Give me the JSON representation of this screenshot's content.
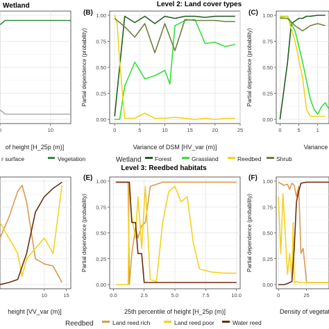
{
  "headings": {
    "top_left": "Wetland",
    "level2": "Level 2: Land cover types",
    "level3": "Level 3: Reedbed habitats"
  },
  "colors": {
    "veg_grey": "#a9a9a9",
    "veg_green": "#2e8b3e",
    "forest": "#1b5e20",
    "grassland": "#32e03a",
    "reedbed_yellow": "#f2d414",
    "shrub": "#6b7f3a",
    "land_reed_rich": "#d99a4e",
    "land_reed_poor": "#f3d21c",
    "water_reed": "#6b2b0e"
  },
  "chart_data": [
    {
      "id": "partial-left-top",
      "type": "line",
      "xlabel": "of height [H_25p (m)]",
      "xticks": [
        "0",
        "10"
      ],
      "xlim": [
        0,
        14
      ],
      "ylim": [
        0,
        1
      ],
      "legend": [
        "r surface",
        "Vegetation"
      ],
      "series": [
        {
          "color": "#a9a9a9",
          "x": [
            0,
            0.3,
            1,
            3,
            6,
            10,
            14
          ],
          "y": [
            0.09,
            0.08,
            0.05,
            0.05,
            0.05,
            0.05,
            0.05
          ]
        },
        {
          "color": "#2e8b3e",
          "x": [
            0,
            0.3,
            1,
            3,
            6,
            10,
            14
          ],
          "y": [
            0.91,
            0.92,
            0.95,
            0.95,
            0.95,
            0.95,
            0.95
          ]
        }
      ]
    },
    {
      "id": "B",
      "panel_label": "(B)",
      "type": "line",
      "xlabel": "Variance of DSM [HV_var (m)]",
      "ylabel": "Partial dependence (probability)",
      "xticks": [
        "0",
        "5",
        "10",
        "15",
        "20",
        "25"
      ],
      "yticks": [
        "0.00",
        "0.25",
        "0.50",
        "0.75",
        "1.00"
      ],
      "xlim": [
        -1,
        25
      ],
      "ylim": [
        0,
        1
      ],
      "legend_title": "Wetland",
      "legend": [
        "Forest",
        "Grassland",
        "Reedbed",
        "Shrub"
      ],
      "series": [
        {
          "name": "Forest",
          "color": "#1b5e20",
          "x": [
            0,
            2,
            4,
            6,
            8,
            10,
            12,
            14,
            16,
            18,
            20,
            22,
            24
          ],
          "y": [
            0.03,
            0.99,
            0.93,
            0.99,
            0.92,
            0.99,
            0.97,
            0.99,
            0.99,
            0.98,
            0.99,
            0.99,
            0.99
          ]
        },
        {
          "name": "Grassland",
          "color": "#32e03a",
          "x": [
            0,
            1,
            2,
            4,
            6,
            8,
            10,
            11,
            12,
            14,
            16,
            18,
            20,
            22,
            24
          ],
          "y": [
            0.0,
            0.0,
            0.32,
            0.55,
            0.39,
            0.42,
            0.47,
            0.34,
            0.9,
            0.95,
            0.96,
            0.73,
            0.74,
            0.7,
            0.72
          ]
        },
        {
          "name": "Reedbed",
          "color": "#f2d414",
          "x": [
            0,
            0.5,
            1,
            2,
            4,
            6,
            8,
            10,
            12,
            14,
            16,
            18,
            20,
            22,
            24
          ],
          "y": [
            1.0,
            0.92,
            0.55,
            0.01,
            0.01,
            0.06,
            0.01,
            0.01,
            0.02,
            0.01,
            0.0,
            0.01,
            0.0,
            0.01,
            0.01
          ]
        },
        {
          "name": "Shrub",
          "color": "#6b7f3a",
          "x": [
            0,
            2,
            4,
            6,
            8,
            10,
            12,
            14,
            16,
            18,
            20,
            22,
            24
          ],
          "y": [
            0.97,
            0.89,
            0.79,
            0.92,
            0.64,
            0.92,
            0.66,
            0.96,
            0.95,
            0.95,
            0.95,
            0.94,
            0.94
          ]
        }
      ]
    },
    {
      "id": "C",
      "panel_label": "(C)",
      "type": "line",
      "xlabel": "Variance of",
      "ylabel": "Partial dependence (probability)",
      "xticks": [
        "0",
        "5",
        "1"
      ],
      "yticks": [
        "0.00",
        "0.25",
        "0.50",
        "0.75",
        "1.00"
      ],
      "xlim": [
        -1,
        13
      ],
      "ylim": [
        0,
        1
      ],
      "series": [
        {
          "name": "Forest",
          "color": "#1b5e20",
          "x": [
            0,
            2,
            3,
            5,
            6,
            7,
            8,
            10,
            12
          ],
          "y": [
            0.0,
            0.55,
            0.92,
            0.97,
            0.97,
            0.99,
            0.99,
            1.0,
            1.0
          ]
        },
        {
          "name": "Grassland",
          "color": "#32e03a",
          "x": [
            0,
            2,
            4,
            6,
            8,
            9,
            10,
            11,
            12,
            13
          ],
          "y": [
            0.98,
            0.99,
            0.85,
            0.55,
            0.2,
            0.1,
            0.05,
            0.12,
            0.16,
            0.1
          ]
        },
        {
          "name": "Reedbed",
          "color": "#f2d414",
          "x": [
            0,
            2,
            4,
            6,
            7,
            8,
            9,
            10,
            12
          ],
          "y": [
            0.99,
            0.99,
            0.75,
            0.4,
            0.1,
            0.03,
            0.03,
            0.03,
            0.03
          ]
        },
        {
          "name": "Shrub",
          "color": "#6b7f3a",
          "x": [
            0,
            2,
            4,
            6,
            8,
            10,
            12
          ],
          "y": [
            0.97,
            0.97,
            0.9,
            0.85,
            0.9,
            0.92,
            0.9
          ]
        }
      ]
    },
    {
      "id": "partial-left-bottom",
      "type": "line",
      "xlabel": "height [VV_var (m)]",
      "xticks": [
        "10",
        "15"
      ],
      "xlim": [
        0,
        16
      ],
      "ylim": [
        0,
        1
      ],
      "series": [
        {
          "name": "Land reed rich",
          "color": "#d99a4e",
          "x": [
            0,
            2,
            4,
            5,
            6,
            8,
            10,
            12,
            14
          ],
          "y": [
            0.45,
            0.65,
            0.9,
            0.96,
            0.8,
            0.25,
            0.2,
            0.18,
            0.02
          ]
        },
        {
          "name": "Land reed poor",
          "color": "#f3d21c",
          "x": [
            0,
            2,
            4,
            5,
            6,
            8,
            10,
            12,
            14
          ],
          "y": [
            0.6,
            0.45,
            0.3,
            0.08,
            0.25,
            0.35,
            0.45,
            0.3,
            0.96
          ]
        },
        {
          "name": "Water reed",
          "color": "#6b2b0e",
          "x": [
            0,
            2,
            4,
            6,
            8,
            10,
            12,
            14
          ],
          "y": [
            0.0,
            0.02,
            0.05,
            0.3,
            0.7,
            0.85,
            0.93,
            0.99
          ]
        }
      ]
    },
    {
      "id": "E",
      "panel_label": "(E)",
      "type": "line",
      "xlabel": "25th percentile of height [H_25p (m)]",
      "ylabel": "Partial dependence (probability)",
      "xticks": [
        "0.0",
        "2.5",
        "5.0",
        "7.5",
        "10.0"
      ],
      "yticks": [
        "0.00",
        "0.25",
        "0.50",
        "0.75",
        "1.00"
      ],
      "xlim": [
        -0.3,
        10.3
      ],
      "ylim": [
        0,
        1
      ],
      "series": [
        {
          "name": "Land reed rich",
          "color": "#d99a4e",
          "x": [
            0.2,
            1.2,
            1.3,
            1.5,
            1.8,
            2.0,
            2.3,
            2.6,
            3.0,
            3.5,
            4.0,
            5.0,
            6.0,
            7.0,
            8.0,
            9.0,
            10.0
          ],
          "y": [
            0.99,
            0.99,
            0.0,
            0.3,
            0.55,
            0.45,
            0.57,
            0.6,
            0.95,
            0.97,
            0.99,
            0.99,
            0.99,
            0.99,
            0.99,
            0.99,
            0.99
          ]
        },
        {
          "name": "Land reed poor",
          "color": "#f3d21c",
          "x": [
            0.2,
            1.2,
            1.3,
            1.5,
            1.8,
            2.0,
            2.3,
            2.6,
            3.0,
            3.5,
            4.0,
            4.5,
            5.0,
            5.5,
            6.0,
            6.5,
            7.0,
            8.0,
            9.0,
            10.0
          ],
          "y": [
            0.0,
            0.0,
            0.99,
            0.65,
            0.45,
            0.85,
            0.35,
            0.95,
            0.05,
            0.03,
            0.6,
            0.9,
            0.95,
            0.8,
            0.85,
            0.4,
            0.15,
            0.12,
            0.11,
            0.11
          ]
        },
        {
          "name": "Water reed",
          "color": "#6b2b0e",
          "x": [
            0.2,
            1.2,
            1.3,
            1.5,
            1.8,
            2.0,
            2.3,
            2.5,
            3.0,
            4.0,
            5.0,
            6.0,
            7.0,
            8.0,
            9.0,
            10.0
          ],
          "y": [
            0.99,
            0.99,
            0.99,
            0.6,
            0.6,
            0.3,
            0.3,
            0.02,
            0.02,
            0.02,
            0.02,
            0.02,
            0.02,
            0.02,
            0.02,
            0.02
          ]
        }
      ]
    },
    {
      "id": "F",
      "panel_label": "(F)",
      "type": "line",
      "xlabel": "Density of vegetati",
      "ylabel": "Partial dependence (probability)",
      "xticks": [
        "0",
        "25"
      ],
      "yticks": [
        "0.00",
        "0.25",
        "0.50",
        "0.75",
        "1.00"
      ],
      "xlim": [
        -2,
        45
      ],
      "ylim": [
        0,
        1
      ],
      "series": [
        {
          "name": "Land reed rich",
          "color": "#d99a4e",
          "x": [
            0,
            5,
            8,
            10,
            12,
            14,
            16,
            18,
            20,
            22,
            25,
            30,
            35,
            40,
            45
          ],
          "y": [
            0.99,
            0.96,
            0.97,
            0.92,
            0.98,
            0.96,
            0.85,
            0.95,
            0.3,
            0.35,
            0.02,
            0.02,
            0.02,
            0.02,
            0.02
          ]
        },
        {
          "name": "Land reed poor",
          "color": "#f3d21c",
          "x": [
            0,
            2,
            4,
            6,
            8,
            10,
            12,
            13,
            14,
            16,
            18,
            20,
            22,
            25,
            30,
            35,
            40,
            45
          ],
          "y": [
            0.85,
            0.3,
            0.88,
            0.5,
            0.1,
            0.3,
            0.05,
            0.6,
            0.02,
            0.03,
            0.02,
            0.02,
            0.02,
            0.02,
            0.02,
            0.02,
            0.02,
            0.02
          ]
        },
        {
          "name": "Water reed",
          "color": "#6b2b0e",
          "x": [
            0,
            5,
            8,
            10,
            12,
            14,
            16,
            18,
            20,
            25,
            30,
            35,
            40,
            45
          ],
          "y": [
            0.0,
            0.0,
            0.01,
            0.02,
            0.03,
            0.35,
            0.8,
            0.9,
            0.98,
            0.99,
            0.99,
            0.99,
            0.99,
            0.99
          ]
        }
      ]
    }
  ],
  "legend_level3": {
    "title": "Reedbed",
    "items": [
      "Land reed rich",
      "Land reed poor",
      "Water reed"
    ]
  }
}
